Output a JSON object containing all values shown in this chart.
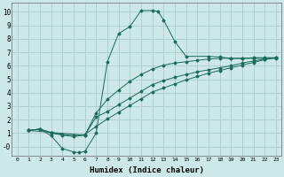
{
  "xlabel": "Humidex (Indice chaleur)",
  "bg_color": "#cce8e8",
  "grid_color": "#aacccc",
  "line_color": "#1a6b5a",
  "xlim": [
    -0.5,
    23.5
  ],
  "ylim": [
    -0.7,
    10.7
  ],
  "xticks": [
    0,
    1,
    2,
    3,
    4,
    5,
    6,
    7,
    8,
    9,
    10,
    11,
    12,
    13,
    14,
    15,
    16,
    17,
    18,
    19,
    20,
    21,
    22,
    23
  ],
  "yticks": [
    0,
    1,
    2,
    3,
    4,
    5,
    6,
    7,
    8,
    9,
    10
  ],
  "ytick_labels": [
    "-0",
    "1",
    "2",
    "3",
    "4",
    "5",
    "6",
    "7",
    "8",
    "9",
    "10"
  ],
  "line1_x": [
    1,
    2,
    3,
    4,
    5,
    5.5,
    6,
    7,
    8,
    9,
    10,
    11,
    12,
    12.5,
    13,
    14,
    15,
    17,
    18,
    19,
    20,
    21,
    22,
    23
  ],
  "line1_y": [
    1.2,
    1.3,
    0.8,
    -0.15,
    -0.4,
    -0.45,
    -0.35,
    1.0,
    6.3,
    8.4,
    8.9,
    10.1,
    10.1,
    10.05,
    9.4,
    7.8,
    6.7,
    6.7,
    6.65,
    6.55,
    6.55,
    6.55,
    6.55,
    6.55
  ],
  "line2_x": [
    1,
    2,
    3,
    4,
    5,
    6,
    7,
    8,
    9,
    10,
    11,
    12,
    13,
    14,
    15,
    16,
    17,
    18,
    19,
    20,
    21,
    22,
    23
  ],
  "line2_y": [
    1.2,
    1.3,
    1.0,
    0.85,
    0.75,
    0.85,
    2.2,
    2.6,
    3.1,
    3.6,
    4.1,
    4.6,
    4.9,
    5.15,
    5.35,
    5.55,
    5.7,
    5.85,
    6.0,
    6.2,
    6.35,
    6.5,
    6.6
  ],
  "line3_x": [
    1,
    3,
    6,
    7,
    8,
    9,
    10,
    11,
    12,
    13,
    14,
    15,
    16,
    17,
    18,
    19,
    20,
    21,
    22,
    23
  ],
  "line3_y": [
    1.2,
    1.05,
    0.85,
    2.5,
    3.5,
    4.2,
    4.85,
    5.35,
    5.75,
    6.05,
    6.2,
    6.3,
    6.4,
    6.5,
    6.55,
    6.55,
    6.55,
    6.6,
    6.6,
    6.6
  ],
  "line4_x": [
    1,
    2,
    3,
    4,
    5,
    6,
    7,
    8,
    9,
    10,
    11,
    12,
    13,
    14,
    15,
    16,
    17,
    18,
    19,
    20,
    21,
    22,
    23
  ],
  "line4_y": [
    1.2,
    1.3,
    1.05,
    0.9,
    0.8,
    0.9,
    1.5,
    2.05,
    2.55,
    3.05,
    3.55,
    4.05,
    4.35,
    4.65,
    4.95,
    5.2,
    5.45,
    5.65,
    5.85,
    6.05,
    6.25,
    6.45,
    6.6
  ]
}
